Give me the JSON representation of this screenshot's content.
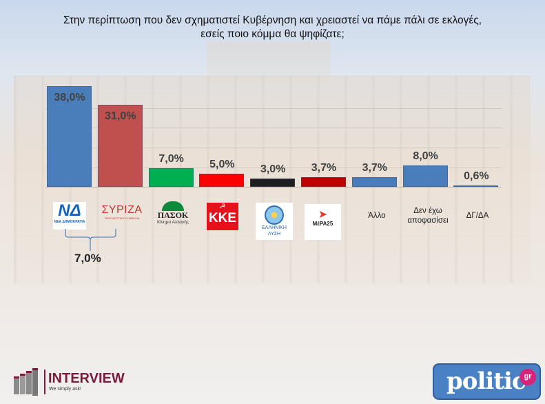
{
  "title_line1": "Στην περίπτωση που δεν σχηματιστεί Κυβέρνηση και χρειαστεί να πάμε πάλι σε εκλογές,",
  "title_line2": "εσείς ποιο κόμμα θα ψηφίζατε;",
  "chart_data": {
    "type": "bar",
    "title": "Στην περίπτωση που δεν σχηματιστεί Κυβέρνηση και χρειαστεί να πάμε πάλι σε εκλογές, εσείς ποιο κόμμα θα ψηφίζατε;",
    "categories": [
      "ΝΕΑ ΔΗΜΟΚΡΑΤΙΑ",
      "ΣΥΡΙΖΑ",
      "ΠΑΣΟΚ Κίνημα Αλλαγής",
      "ΚΚΕ",
      "ΕΛΛΗΝΙΚΗ ΛΥΣΗ",
      "ΜέΡΑ25",
      "Άλλο",
      "Δεν έχω αποφασίσει",
      "ΔΓ/ΔΑ"
    ],
    "values": [
      38.0,
      31.0,
      7.0,
      5.0,
      3.0,
      3.7,
      3.7,
      8.0,
      0.6
    ],
    "value_labels": [
      "38,0%",
      "31,0%",
      "7,0%",
      "5,0%",
      "3,0%",
      "3,7%",
      "3,7%",
      "8,0%",
      "0,6%"
    ],
    "colors": [
      "#4a7ebb",
      "#c0504d",
      "#00b050",
      "#ff0000",
      "#1f1f1f",
      "#c00000",
      "#4a7ebb",
      "#4a7ebb",
      "#4a7ebb"
    ],
    "xlabel": "",
    "ylabel": "",
    "ylim": [
      0,
      40
    ],
    "grid": true,
    "legend": "none",
    "annotations": [
      {
        "type": "brace",
        "spans": [
          "ΝΕΑ ΔΗΜΟΚΡΑΤΙΑ",
          "ΣΥΡΙΖΑ"
        ],
        "label": "7,0%"
      }
    ]
  },
  "logos": {
    "nd": {
      "mark": "ΝΔ",
      "text": "ΝΕΑ ΔΗΜΟΚΡΑΤΙΑ"
    },
    "syriza": {
      "mark": "ΣΥΡΙΖΑ",
      "sub": "ΠΡΟΟΔΕΥΤΙΚΗ ΣΥΜΜΑΧΙΑ"
    },
    "pasok": {
      "mark": "ΠΑΣΟΚ",
      "sub": "Κίνημα Αλλαγής"
    },
    "kke": {
      "mark": "ΚΚΕ"
    },
    "el_lysi": {
      "line1": "ΕΛΛΗΝΙΚΗ",
      "line2": "ΛΥΣΗ"
    },
    "mera25": {
      "mark": "ΜέΡΑ25"
    }
  },
  "text_categories": {
    "allo": "Άλλο",
    "undecided_1": "Δεν έχω",
    "undecided_2": "αποφασίσει",
    "dk": "ΔΓ/ΔΑ"
  },
  "brace_label": "7,0%",
  "footer": {
    "interview_name": "INTERVIEW",
    "interview_tagline": "We simply ask!",
    "politic_name": "politic",
    "politic_suffix": "gr"
  }
}
